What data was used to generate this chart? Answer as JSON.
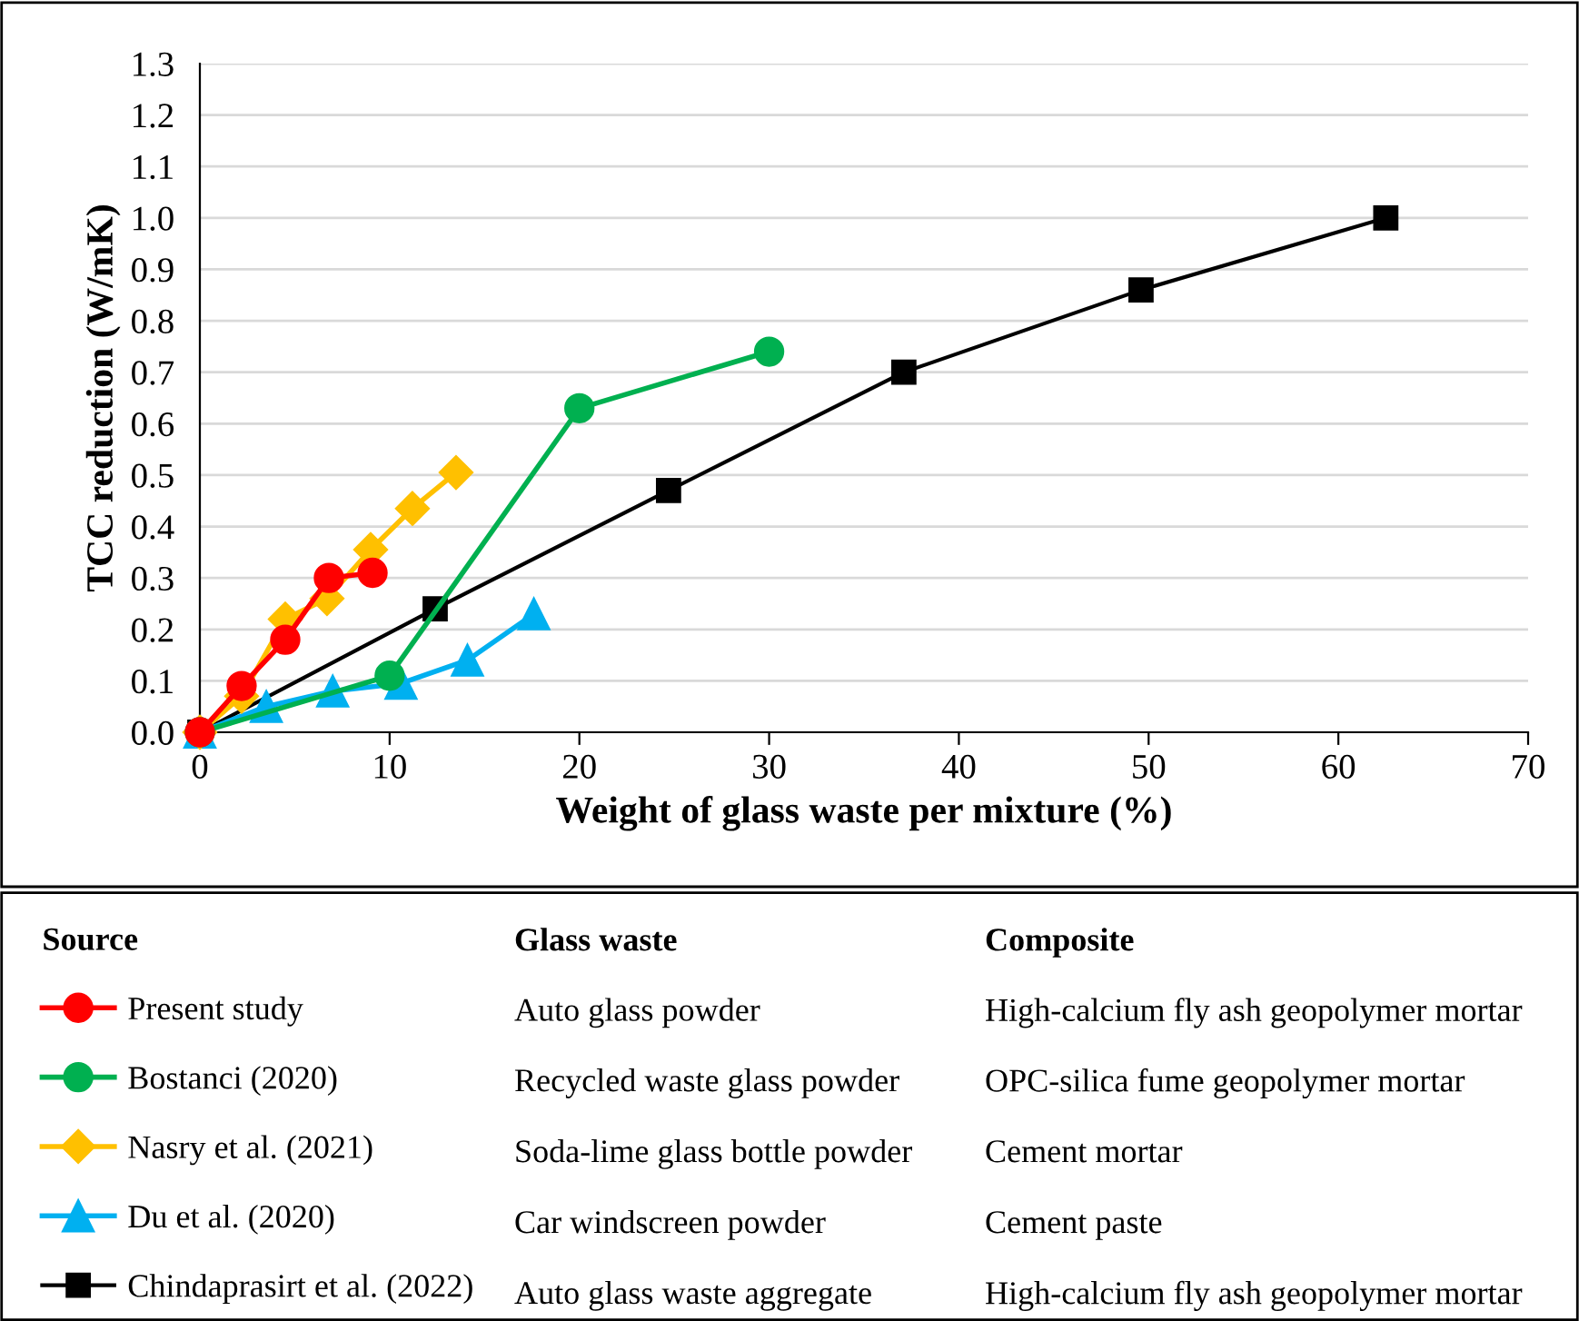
{
  "chart_data": {
    "type": "line",
    "xlabel": "Weight of glass waste per mixture (%)",
    "ylabel": "TCC reduction (W/mK)",
    "xlim": [
      0,
      70
    ],
    "xticks": [
      0,
      10,
      20,
      30,
      40,
      50,
      60,
      70
    ],
    "ylim": [
      0,
      1.3
    ],
    "yticks": [
      {
        "value": 0,
        "label": "0.0"
      },
      0.1,
      0.2,
      0.3,
      0.4,
      0.5,
      0.6,
      0.7,
      0.8,
      0.9,
      {
        "value": 1,
        "label": "1.0"
      },
      1.1,
      1.2,
      1.3
    ],
    "grid": "y",
    "legend": "bottom",
    "legend_title": "Source",
    "series": [
      {
        "name": "Present study",
        "color": "#ff0000",
        "marker": "circle",
        "x": [
          0,
          2.2,
          4.5,
          6.8,
          9.1
        ],
        "values": [
          0,
          0.09,
          0.18,
          0.3,
          0.31
        ]
      },
      {
        "name": "Bostanci (2020)",
        "color": "#00b050",
        "marker": "circle",
        "x": [
          0,
          10,
          20,
          30
        ],
        "values": [
          0,
          0.11,
          0.63,
          0.74
        ]
      },
      {
        "name": "Nasry et al. (2021)",
        "color": "#ffc000",
        "marker": "diamond",
        "x": [
          0,
          2.2,
          4.5,
          6.7,
          9,
          11.2,
          13.5
        ],
        "values": [
          0,
          0.07,
          0.22,
          0.26,
          0.355,
          0.435,
          0.505
        ]
      },
      {
        "name": "Du et al. (2020)",
        "color": "#00b0f0",
        "marker": "triangle",
        "x": [
          0,
          3.5,
          7,
          10.6,
          14.1,
          17.6
        ],
        "values": [
          0,
          0.05,
          0.08,
          0.095,
          0.14,
          0.23
        ]
      },
      {
        "name": "Chindaprasirt et al. (2022)",
        "color": "#000000",
        "marker": "square",
        "x": [
          0,
          12.4,
          24.7,
          37.1,
          49.6,
          62.5
        ],
        "values": [
          0,
          0.24,
          0.47,
          0.7,
          0.86,
          1.0
        ]
      }
    ],
    "annotations": [
      "Glass waste",
      "Composite",
      "Auto glass powder",
      "High-calcium fly ash geopolymer mortar",
      "Recycled waste glass powder",
      "OPC-silica fume geopolymer mortar",
      "Soda-lime glass bottle powder",
      "Cement mortar",
      "Car windscreen powder",
      "Cement paste",
      "Auto glass waste aggregate",
      "High-calcium fly ash geopolymer mortar"
    ]
  }
}
